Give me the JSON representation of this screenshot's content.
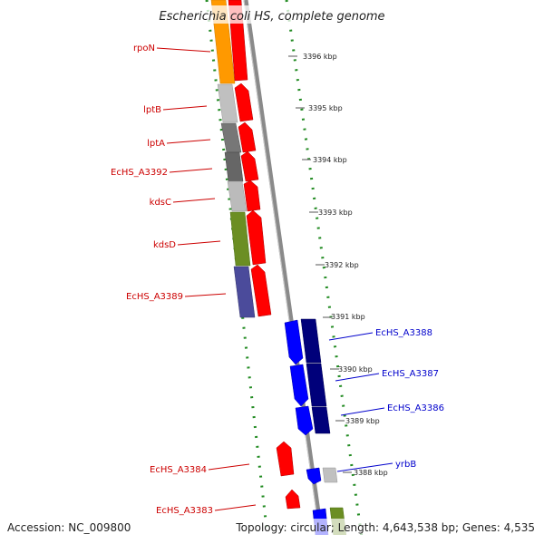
{
  "title": "Escherichia coli HS, complete genome",
  "footer": {
    "accession": "Accession: NC_009800",
    "summary": "Topology: circular; Length: 4,643,538 bp; Genes: 4,535"
  },
  "colors": {
    "forward_arrow": "#ff0000",
    "reverse_arrow": "#0000ff",
    "backbone": "#888888",
    "dots": "#228b22",
    "left_label": "#cc0000",
    "right_label": "#0000cc"
  },
  "ticks": [
    "3396 kbp",
    "3395 kbp",
    "3394 kbp",
    "3393 kbp",
    "3392 kbp",
    "3391 kbp",
    "3390 kbp",
    "3389 kbp",
    "3388 kbp"
  ],
  "genes_left": [
    "rpoN",
    "lptB",
    "lptA",
    "EcHS_A3392",
    "kdsC",
    "kdsD",
    "EcHS_A3389",
    "EcHS_A3384",
    "EcHS_A3383"
  ],
  "genes_right": [
    "EcHS_A3388",
    "EcHS_A3387",
    "EcHS_A3386",
    "yrbB"
  ]
}
